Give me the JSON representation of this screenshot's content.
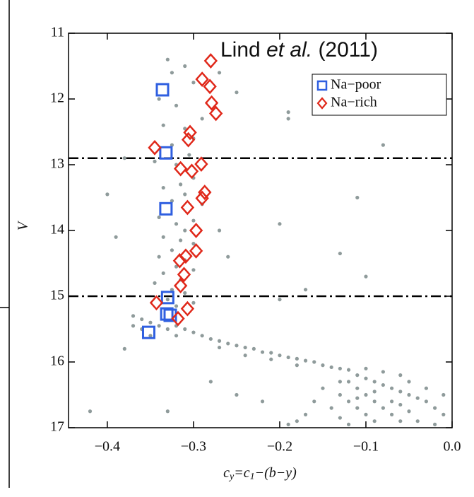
{
  "chart_data": {
    "type": "scatter",
    "annotation": [
      "Lind ",
      "et al.",
      " (2011)"
    ],
    "xlabel": [
      "c",
      "y",
      "=c",
      "1",
      "−(b−y)"
    ],
    "ylabel": "V",
    "xlim": [
      -0.445,
      0.0
    ],
    "ylim": [
      17,
      11
    ],
    "xticks": [
      {
        "value": -0.4,
        "label": "−0.4"
      },
      {
        "value": -0.3,
        "label": "−0.3"
      },
      {
        "value": -0.2,
        "label": "−0.2"
      },
      {
        "value": -0.1,
        "label": "−0.1"
      },
      {
        "value": 0,
        "label": "0.0"
      }
    ],
    "yticks": [
      11,
      12,
      13,
      14,
      15,
      16,
      17
    ],
    "hlines": [
      12.9,
      15.0
    ],
    "legend": "upper right",
    "series": [
      {
        "color": "#8f9b9b",
        "marker": "circle",
        "x": [
          -0.33,
          -0.325,
          -0.31,
          -0.3,
          -0.34,
          -0.32,
          -0.29,
          -0.335,
          -0.31,
          -0.3,
          -0.325,
          -0.305,
          -0.345,
          -0.32,
          -0.3,
          -0.315,
          -0.335,
          -0.31,
          -0.29,
          -0.325,
          -0.34,
          -0.3,
          -0.32,
          -0.31,
          -0.335,
          -0.315,
          -0.3,
          -0.325,
          -0.34,
          -0.31,
          -0.32,
          -0.3,
          -0.335,
          -0.315,
          -0.345,
          -0.325,
          -0.31,
          -0.33,
          -0.3,
          -0.32,
          -0.27,
          -0.25,
          -0.19,
          -0.19,
          -0.08,
          -0.38,
          -0.4,
          -0.11,
          -0.39,
          -0.2,
          -0.13,
          -0.1,
          -0.17,
          -0.2,
          -0.26,
          -0.27,
          -0.42,
          -0.38,
          -0.33,
          -0.25,
          -0.22,
          -0.28,
          -0.37,
          -0.36,
          -0.35,
          -0.34,
          -0.33,
          -0.32,
          -0.31,
          -0.3,
          -0.37,
          -0.35,
          -0.36,
          -0.32,
          -0.29,
          -0.28,
          -0.27,
          -0.26,
          -0.25,
          -0.24,
          -0.23,
          -0.22,
          -0.21,
          -0.2,
          -0.19,
          -0.18,
          -0.17,
          -0.16,
          -0.15,
          -0.14,
          -0.13,
          -0.12,
          -0.27,
          -0.24,
          -0.21,
          -0.18,
          -0.11,
          -0.1,
          -0.09,
          -0.08,
          -0.07,
          -0.06,
          -0.05,
          -0.04,
          -0.03,
          -0.02,
          -0.01,
          -0.12,
          -0.11,
          -0.1,
          -0.09,
          -0.08,
          -0.07,
          -0.06,
          -0.13,
          -0.12,
          -0.11,
          -0.1,
          -0.09,
          -0.14,
          -0.13,
          -0.12,
          -0.15,
          -0.16,
          -0.17,
          -0.18,
          -0.19,
          -0.05,
          -0.04,
          -0.02,
          -0.08,
          -0.06,
          -0.1,
          -0.03,
          -0.01,
          -0.07,
          -0.05,
          -0.09,
          -0.11,
          -0.13,
          -0.06
        ],
        "y": [
          11.4,
          11.6,
          11.5,
          11.75,
          12.0,
          12.1,
          12.3,
          12.4,
          12.45,
          12.6,
          12.7,
          12.85,
          12.95,
          13.0,
          13.2,
          13.3,
          13.35,
          13.45,
          13.6,
          13.55,
          13.8,
          13.85,
          13.9,
          14.0,
          14.1,
          14.15,
          14.2,
          14.3,
          14.4,
          14.45,
          14.55,
          14.6,
          14.65,
          14.75,
          14.8,
          14.9,
          14.95,
          15.05,
          15.1,
          15.15,
          11.6,
          11.9,
          12.2,
          12.3,
          12.7,
          12.9,
          13.45,
          13.5,
          14.1,
          13.9,
          14.35,
          14.7,
          14.9,
          15.05,
          14.4,
          14.0,
          16.75,
          15.8,
          16.75,
          16.5,
          16.6,
          16.3,
          15.3,
          15.35,
          15.4,
          15.45,
          15.5,
          15.45,
          15.5,
          15.55,
          15.45,
          15.6,
          15.5,
          15.6,
          15.6,
          15.65,
          15.68,
          15.72,
          15.75,
          15.78,
          15.8,
          15.85,
          15.86,
          15.9,
          15.93,
          15.95,
          15.98,
          16.0,
          16.05,
          16.08,
          16.1,
          16.12,
          15.78,
          15.9,
          15.96,
          16.05,
          16.2,
          16.25,
          16.3,
          16.35,
          16.4,
          16.45,
          16.5,
          16.55,
          16.6,
          16.7,
          16.8,
          16.3,
          16.4,
          16.5,
          16.6,
          16.7,
          16.8,
          16.9,
          16.5,
          16.6,
          16.7,
          16.8,
          16.9,
          16.7,
          16.85,
          16.95,
          16.4,
          16.6,
          16.8,
          16.9,
          16.95,
          16.3,
          16.9,
          16.95,
          16.15,
          16.2,
          16.1,
          16.4,
          16.5,
          16.6,
          16.75,
          16.45,
          16.55,
          16.3,
          16.65
        ]
      },
      {
        "name": "Na−poor",
        "color": "#2f5fe0",
        "marker": "square",
        "x": [
          -0.336,
          -0.332,
          -0.332,
          -0.33,
          -0.331,
          -0.327,
          -0.352
        ],
        "y": [
          11.86,
          12.82,
          13.67,
          15.02,
          15.27,
          15.29,
          15.55
        ]
      },
      {
        "name": "Na−rich",
        "color": "#e0281a",
        "marker": "diamond",
        "x": [
          -0.28,
          -0.29,
          -0.281,
          -0.279,
          -0.274,
          -0.304,
          -0.306,
          -0.345,
          -0.291,
          -0.315,
          -0.302,
          -0.307,
          -0.287,
          -0.29,
          -0.297,
          -0.297,
          -0.309,
          -0.316,
          -0.311,
          -0.315,
          -0.343,
          -0.307,
          -0.318
        ],
        "y": [
          11.42,
          11.7,
          11.81,
          12.06,
          12.22,
          12.51,
          12.62,
          12.74,
          12.99,
          13.06,
          13.1,
          13.65,
          13.42,
          13.51,
          14.0,
          14.31,
          14.39,
          14.46,
          14.67,
          14.84,
          15.1,
          15.19,
          15.34
        ]
      }
    ]
  }
}
